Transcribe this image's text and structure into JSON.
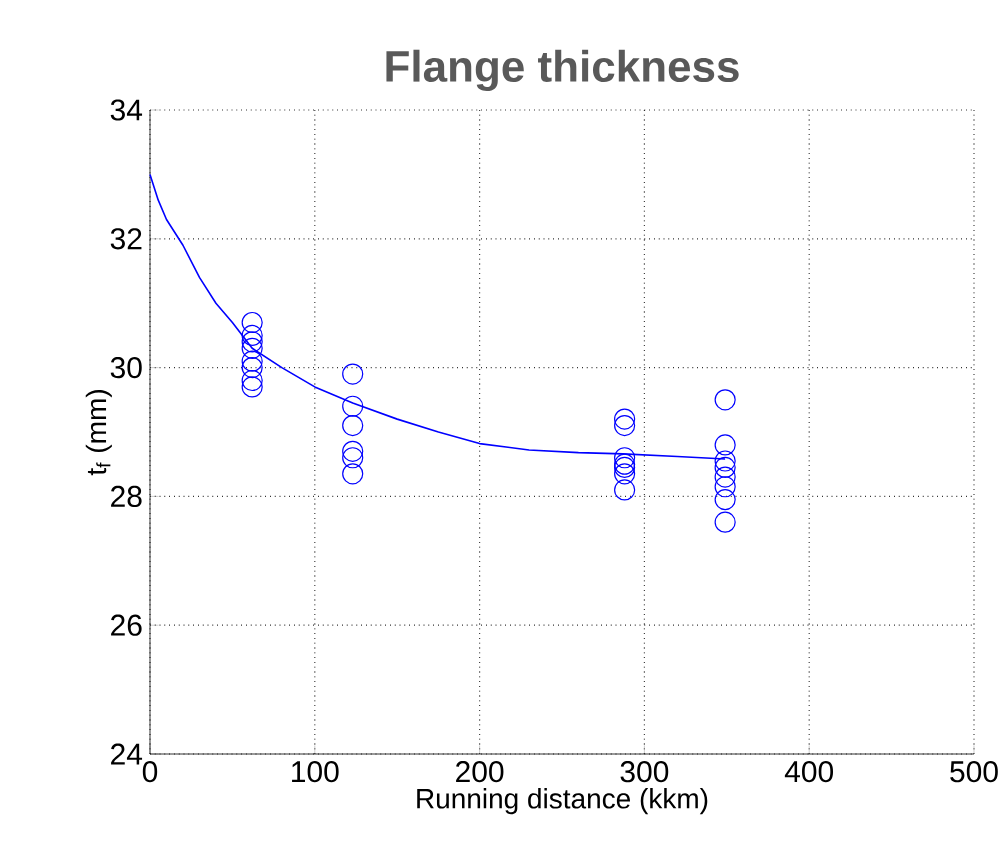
{
  "chart_data": {
    "type": "scatter",
    "title": "Flange thickness",
    "xlabel": "Running distance (kkm)",
    "ylabel": "t$_{f}$ (mm)",
    "xlim": [
      0,
      500
    ],
    "ylim": [
      24,
      34
    ],
    "xticks": [
      0,
      100,
      200,
      300,
      400,
      500
    ],
    "yticks": [
      24,
      26,
      28,
      30,
      32,
      34
    ],
    "grid": true,
    "series": [
      {
        "marker": "circle",
        "color": "#0000ff",
        "x": [
          62,
          62,
          62,
          62,
          62,
          62,
          62,
          62,
          123,
          123,
          123,
          123,
          123,
          123,
          288,
          288,
          288,
          288,
          288,
          288,
          288,
          349,
          349,
          349,
          349,
          349,
          349,
          349,
          349
        ],
        "values": [
          30.7,
          30.5,
          30.4,
          30.3,
          30.1,
          30.0,
          29.8,
          29.7,
          29.9,
          29.4,
          29.1,
          28.7,
          28.6,
          28.35,
          29.2,
          29.1,
          28.6,
          28.5,
          28.45,
          28.35,
          28.1,
          29.5,
          28.8,
          28.55,
          28.45,
          28.3,
          28.15,
          27.95,
          27.6
        ]
      },
      {
        "type": "line",
        "marker": "none",
        "color": "#0000ff",
        "x": [
          0,
          5,
          10,
          20,
          30,
          40,
          50,
          62,
          80,
          100,
          123,
          150,
          175,
          200,
          230,
          260,
          287,
          320,
          349
        ],
        "values": [
          33,
          32.6,
          32.3,
          31.9,
          31.4,
          31.0,
          30.7,
          30.3,
          30.0,
          29.7,
          29.45,
          29.2,
          29.0,
          28.82,
          28.72,
          28.68,
          28.66,
          28.62,
          28.58
        ]
      }
    ]
  }
}
